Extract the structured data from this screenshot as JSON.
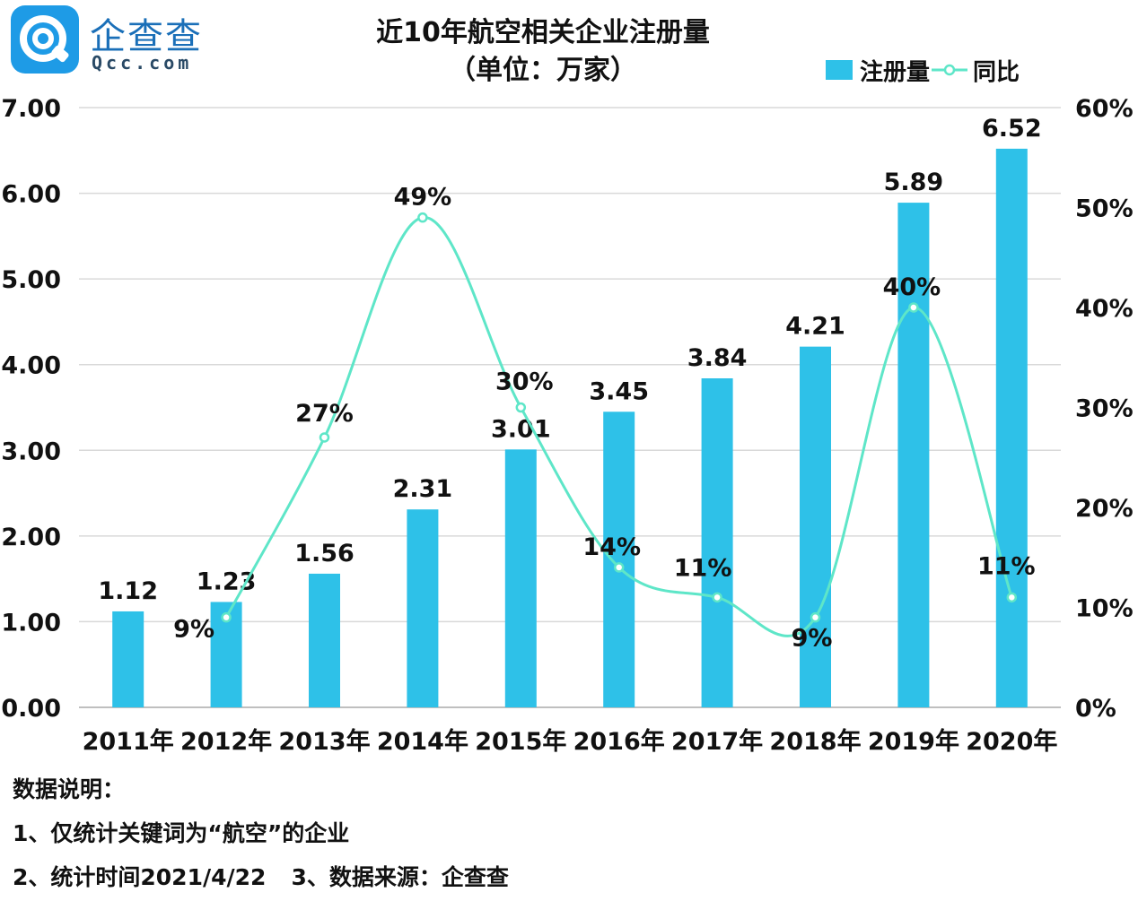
{
  "logo": {
    "name_cn": "企查查",
    "name_en": "Qcc.com"
  },
  "colors": {
    "bar": "#2ec1e8",
    "line": "#5ee6c8",
    "grid": "#d9d9d9"
  },
  "chart_data": {
    "type": "bar+line",
    "title_line1": "近10年航空相关企业注册量",
    "title_line2": "（单位：万家）",
    "categories": [
      "2011年",
      "2012年",
      "2013年",
      "2014年",
      "2015年",
      "2016年",
      "2017年",
      "2018年",
      "2019年",
      "2020年"
    ],
    "series": [
      {
        "name": "注册量",
        "type": "bar",
        "axis": "left",
        "values": [
          1.12,
          1.23,
          1.56,
          2.31,
          3.01,
          3.45,
          3.84,
          4.21,
          5.89,
          6.52
        ],
        "labels": [
          "1.12",
          "1.23",
          "1.56",
          "2.31",
          "3.01",
          "3.45",
          "3.84",
          "4.21",
          "5.89",
          "6.52"
        ]
      },
      {
        "name": "同比",
        "type": "line",
        "axis": "right",
        "values": [
          null,
          9,
          27,
          49,
          30,
          14,
          11,
          9,
          40,
          11
        ],
        "labels": [
          "",
          "9%",
          "27%",
          "49%",
          "30%",
          "14%",
          "11%",
          "9%",
          "40%",
          "11%"
        ]
      }
    ],
    "y_left": {
      "range": [
        0,
        7
      ],
      "ticks": [
        "0.00",
        "1.00",
        "2.00",
        "3.00",
        "4.00",
        "5.00",
        "6.00",
        "7.00"
      ]
    },
    "y_right": {
      "range": [
        0,
        60
      ],
      "ticks": [
        "0%",
        "10%",
        "20%",
        "30%",
        "40%",
        "50%",
        "60%"
      ]
    },
    "grid": true,
    "legend": "top-right"
  },
  "notes": {
    "heading": "数据说明：",
    "line1": "1、仅统计关键词为“航空”的企业",
    "line2a": "2、统计时间2021/4/22",
    "line2b": "3、数据来源：企查查"
  }
}
